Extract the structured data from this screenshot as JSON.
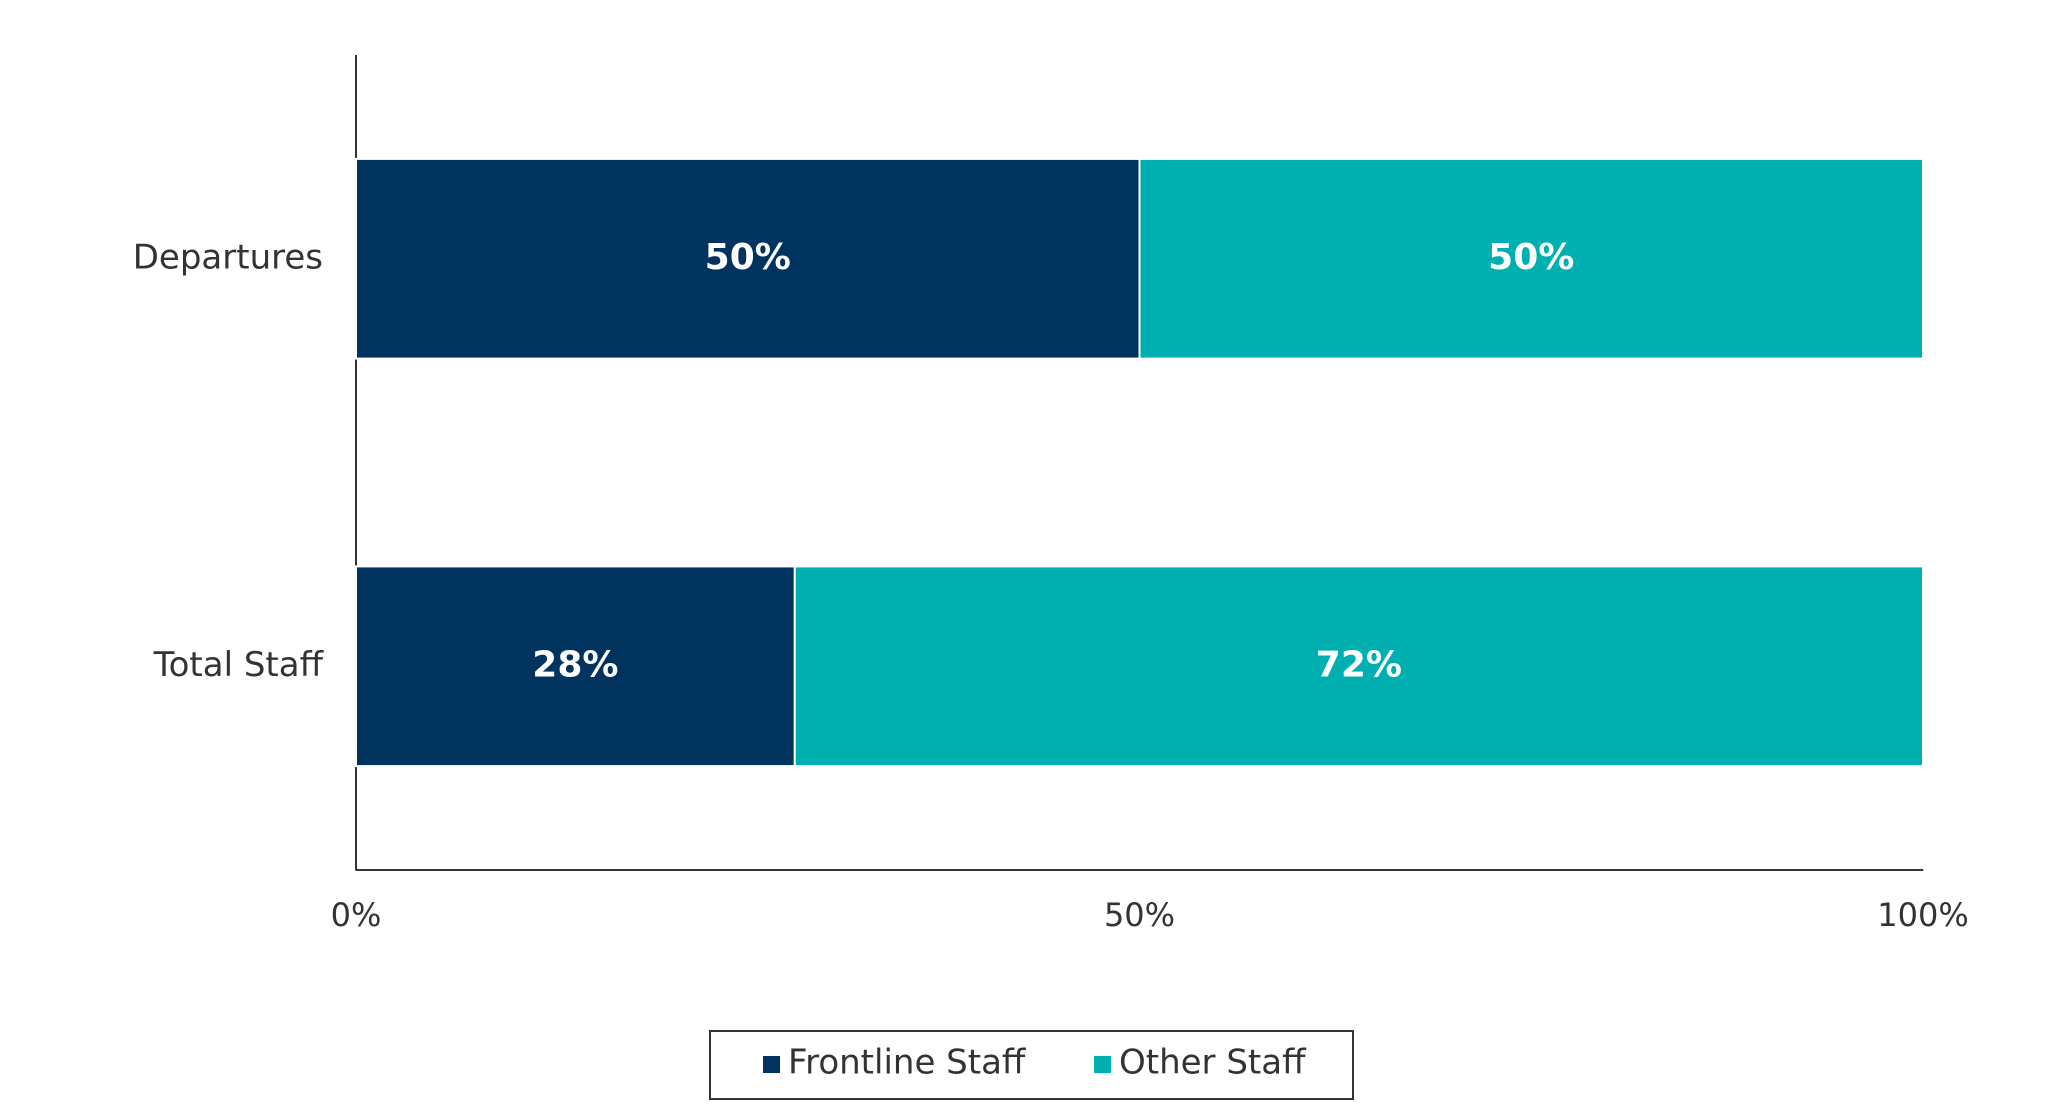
{
  "chart_data": {
    "type": "stacked-barh",
    "categories": [
      "Departures",
      "Total Staff"
    ],
    "series": [
      {
        "name": "Frontline Staff",
        "color": "#00335e",
        "values": [
          50,
          28
        ],
        "value_labels": [
          "50%",
          "28%"
        ]
      },
      {
        "name": "Other Staff",
        "color": "#00b0b0",
        "values": [
          50,
          72
        ],
        "value_labels": [
          "50%",
          "72%"
        ]
      }
    ],
    "xlim": [
      0,
      100
    ],
    "xticks": [
      {
        "value": 0,
        "label": "0%"
      },
      {
        "value": 50,
        "label": "50%"
      },
      {
        "value": 100,
        "label": "100%"
      }
    ],
    "legend": "bottom"
  }
}
